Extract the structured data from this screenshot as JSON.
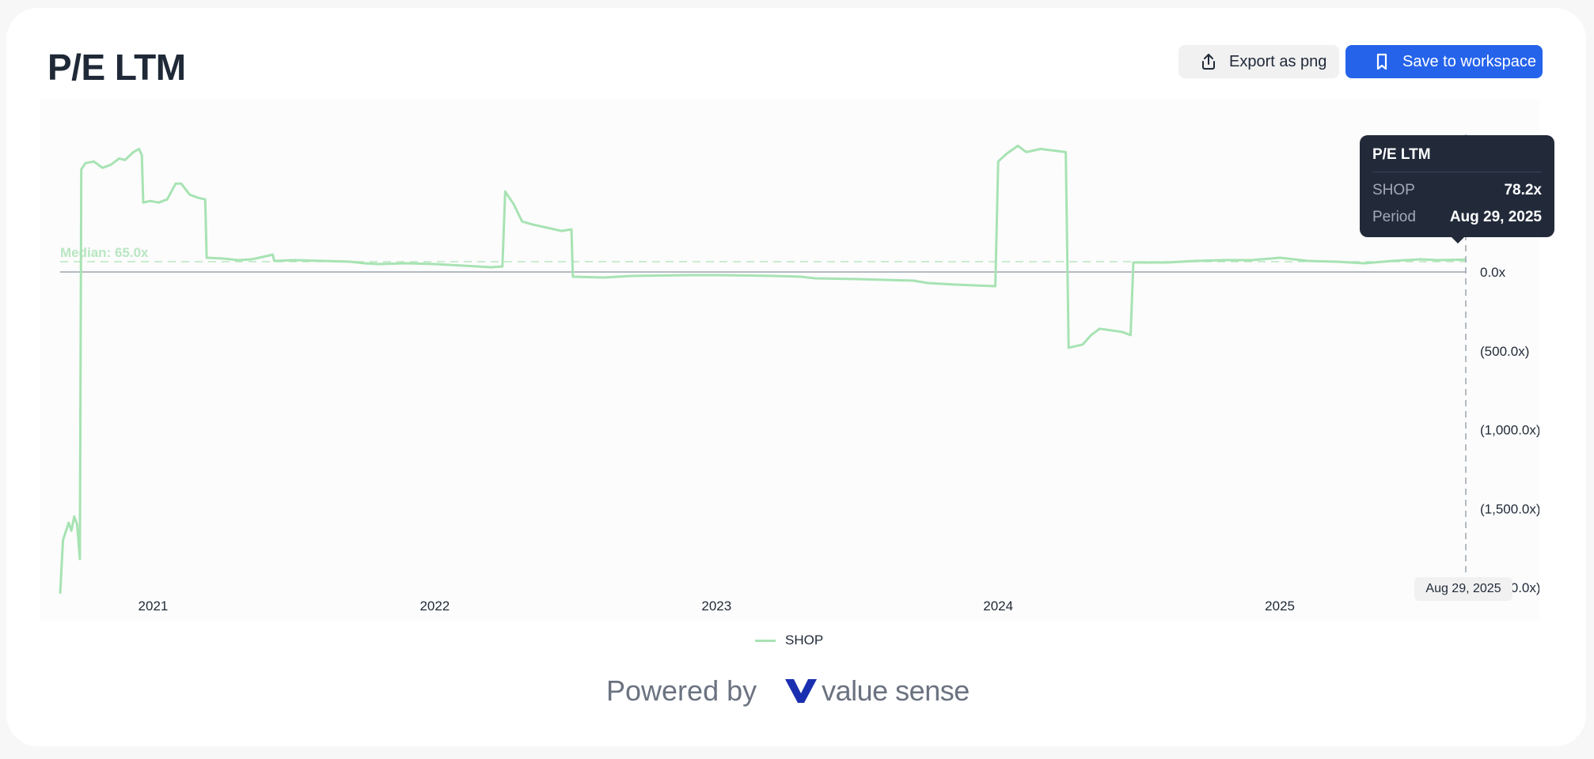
{
  "header": {
    "title": "P/E LTM",
    "export_label": "Export as png",
    "save_label": "Save to workspace"
  },
  "icons": {
    "export": "upload-share-icon",
    "save": "bookmark-icon"
  },
  "colors": {
    "series": "#a7e3b3",
    "accent": "#2563eb",
    "tooltip_bg": "#222a3a"
  },
  "tooltip": {
    "title": "P/E LTM",
    "series_label": "SHOP",
    "series_value": "78.2x",
    "period_label": "Period",
    "period_value": "Aug 29, 2025"
  },
  "crosshair_date_label": "Aug 29, 2025",
  "legend": {
    "label": "SHOP"
  },
  "footer": {
    "powered_by": "Powered by",
    "brand": "value sense"
  },
  "chart_data": {
    "type": "line",
    "title": "P/E LTM",
    "xlabel": "",
    "ylabel": "",
    "y_tick_labels": [
      "0.0x",
      "(500.0x)",
      "(1,000.0x)",
      "(1,500.0x)",
      "(2,000.0x)"
    ],
    "y_ticks": [
      0,
      -500,
      -1000,
      -1500,
      -2000
    ],
    "x_tick_labels": [
      "2021",
      "2022",
      "2023",
      "2024",
      "2025"
    ],
    "x_ticks": [
      2021.0,
      2022.0,
      2023.0,
      2024.0,
      2025.0
    ],
    "xlim": [
      2020.67,
      2025.66
    ],
    "ylim": [
      -2000,
      900
    ],
    "median": {
      "label": "Median: 65.0x",
      "value": 65.0
    },
    "grid": false,
    "legend_position": "bottom-center",
    "series": [
      {
        "name": "SHOP",
        "points": [
          [
            2020.67,
            -2040
          ],
          [
            2020.68,
            -1700
          ],
          [
            2020.7,
            -1590
          ],
          [
            2020.71,
            -1640
          ],
          [
            2020.72,
            -1550
          ],
          [
            2020.73,
            -1600
          ],
          [
            2020.74,
            -1820
          ],
          [
            2020.745,
            650
          ],
          [
            2020.76,
            690
          ],
          [
            2020.79,
            700
          ],
          [
            2020.82,
            660
          ],
          [
            2020.85,
            680
          ],
          [
            2020.88,
            720
          ],
          [
            2020.9,
            710
          ],
          [
            2020.93,
            760
          ],
          [
            2020.95,
            780
          ],
          [
            2020.96,
            740
          ],
          [
            2020.965,
            440
          ],
          [
            2020.99,
            450
          ],
          [
            2021.02,
            440
          ],
          [
            2021.05,
            460
          ],
          [
            2021.08,
            560
          ],
          [
            2021.1,
            560
          ],
          [
            2021.13,
            490
          ],
          [
            2021.16,
            470
          ],
          [
            2021.185,
            460
          ],
          [
            2021.19,
            90
          ],
          [
            2021.25,
            85
          ],
          [
            2021.3,
            75
          ],
          [
            2021.35,
            80
          ],
          [
            2021.4,
            100
          ],
          [
            2021.425,
            110
          ],
          [
            2021.43,
            70
          ],
          [
            2021.5,
            75
          ],
          [
            2021.6,
            70
          ],
          [
            2021.7,
            65
          ],
          [
            2021.75,
            55
          ],
          [
            2021.8,
            50
          ],
          [
            2021.9,
            55
          ],
          [
            2022.0,
            50
          ],
          [
            2022.1,
            40
          ],
          [
            2022.2,
            30
          ],
          [
            2022.24,
            35
          ],
          [
            2022.25,
            510
          ],
          [
            2022.28,
            430
          ],
          [
            2022.31,
            320
          ],
          [
            2022.35,
            300
          ],
          [
            2022.4,
            280
          ],
          [
            2022.45,
            260
          ],
          [
            2022.485,
            270
          ],
          [
            2022.49,
            -30
          ],
          [
            2022.6,
            -35
          ],
          [
            2022.7,
            -25
          ],
          [
            2022.9,
            -20
          ],
          [
            2023.0,
            -20
          ],
          [
            2023.1,
            -22
          ],
          [
            2023.2,
            -25
          ],
          [
            2023.3,
            -30
          ],
          [
            2023.35,
            -40
          ],
          [
            2023.5,
            -45
          ],
          [
            2023.6,
            -50
          ],
          [
            2023.7,
            -55
          ],
          [
            2023.75,
            -70
          ],
          [
            2023.85,
            -80
          ],
          [
            2023.99,
            -90
          ],
          [
            2024.0,
            700
          ],
          [
            2024.03,
            750
          ],
          [
            2024.07,
            800
          ],
          [
            2024.1,
            760
          ],
          [
            2024.15,
            780
          ],
          [
            2024.24,
            760
          ],
          [
            2024.25,
            -480
          ],
          [
            2024.3,
            -460
          ],
          [
            2024.33,
            -400
          ],
          [
            2024.36,
            -360
          ],
          [
            2024.4,
            -370
          ],
          [
            2024.44,
            -380
          ],
          [
            2024.47,
            -400
          ],
          [
            2024.48,
            60
          ],
          [
            2024.6,
            60
          ],
          [
            2024.7,
            70
          ],
          [
            2024.8,
            75
          ],
          [
            2024.9,
            75
          ],
          [
            2025.0,
            90
          ],
          [
            2025.1,
            70
          ],
          [
            2025.2,
            65
          ],
          [
            2025.3,
            55
          ],
          [
            2025.4,
            70
          ],
          [
            2025.5,
            80
          ],
          [
            2025.56,
            75
          ],
          [
            2025.66,
            78.2
          ]
        ]
      }
    ]
  }
}
